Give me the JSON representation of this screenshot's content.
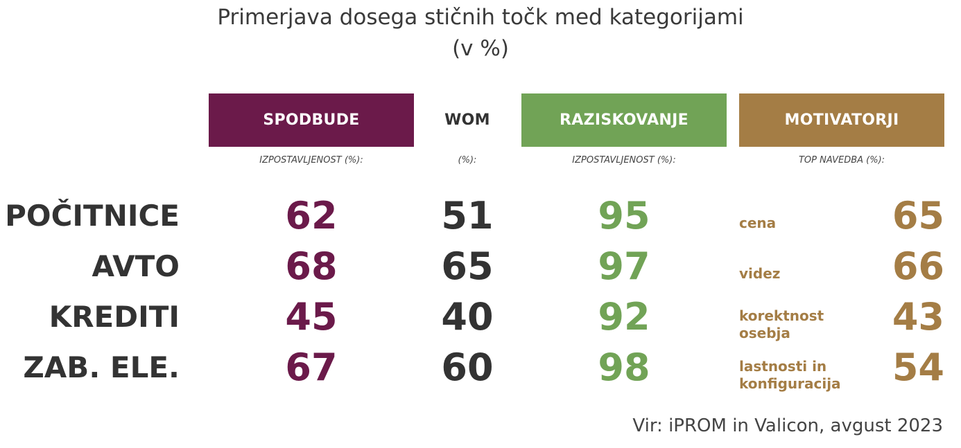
{
  "title_line1": "Primerjava dosega stičnih točk med kategorijami",
  "title_line2": "(v %)",
  "colors": {
    "spodbude": "#6b1a4a",
    "raziskovanje": "#71a356",
    "motivatorji": "#a47d45",
    "wom": "#333333"
  },
  "columns": [
    {
      "header": "SPODBUDE",
      "sub": "IZPOSTAVLJENOST (%):"
    },
    {
      "header": "WOM",
      "sub": "(%):"
    },
    {
      "header": "RAZISKOVANJE",
      "sub": "IZPOSTAVLJENOST (%):"
    },
    {
      "header": "MOTIVATORJI",
      "sub": "TOP NAVEDBA (%):"
    }
  ],
  "chart_data": {
    "type": "table",
    "title": "Primerjava dosega stičnih točk med kategorijami (v %)",
    "categories": [
      "POČITNICE",
      "AVTO",
      "KREDITI",
      "ZAB. ELE."
    ],
    "series": [
      {
        "name": "SPODBUDE",
        "values": [
          62,
          68,
          45,
          67
        ]
      },
      {
        "name": "WOM",
        "values": [
          51,
          65,
          40,
          60
        ]
      },
      {
        "name": "RAZISKOVANJE",
        "values": [
          95,
          97,
          92,
          98
        ]
      },
      {
        "name": "MOTIVATORJI",
        "values": [
          65,
          66,
          43,
          54
        ]
      }
    ],
    "motivator_labels": [
      [
        "cena"
      ],
      [
        "videz"
      ],
      [
        "korektnost",
        "osebja"
      ],
      [
        "lastnosti in",
        "konfiguracija"
      ]
    ]
  },
  "source": "Vir: iPROM in Valicon, avgust 2023"
}
